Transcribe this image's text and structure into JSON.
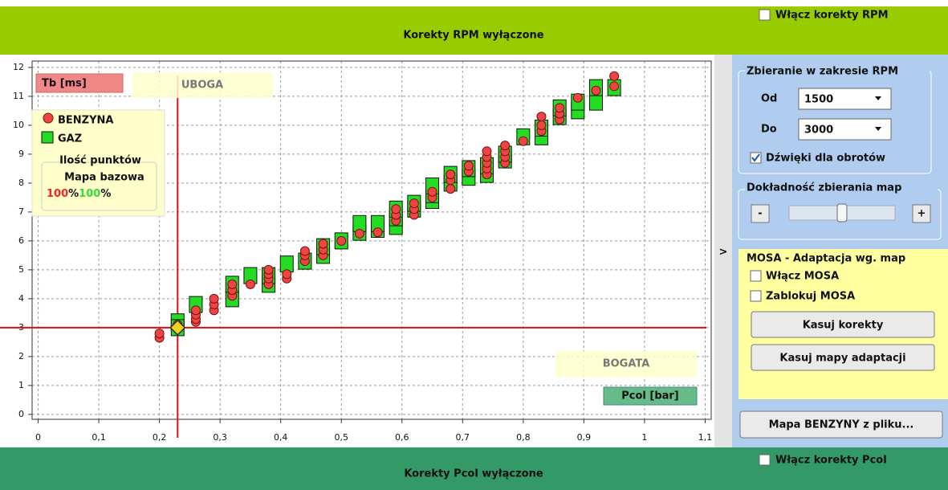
{
  "header": {
    "title": "Korekty RPM wyłączone",
    "checkbox": "Włącz korekty RPM"
  },
  "chart_data": {
    "type": "scatter",
    "y_axis_label": "Tb [ms]",
    "x_axis_label": "Pcol [bar]",
    "annotations": [
      "UBOGA",
      "BOGATA"
    ],
    "legend_title": "Ilość punktów",
    "legend_subtitle": "Mapa bazowa",
    "percent": {
      "petrol": "100",
      "gas": "100",
      "unit": "%"
    },
    "xlim": [
      -0.01,
      1.11
    ],
    "ylim": [
      -0.17,
      12.22
    ],
    "xticks": [
      0,
      {
        "value": 0.1,
        "label": "0,1"
      },
      {
        "value": 0.2,
        "label": "0,2"
      },
      {
        "value": 0.3,
        "label": "0,3"
      },
      {
        "value": 0.4,
        "label": "0,4"
      },
      {
        "value": 0.5,
        "label": "0,5"
      },
      {
        "value": 0.6,
        "label": "0,6"
      },
      {
        "value": 0.7,
        "label": "0,7"
      },
      {
        "value": 0.8,
        "label": "0,8"
      },
      {
        "value": 0.9,
        "label": "0,9"
      },
      1,
      {
        "value": 1.1,
        "label": "1,1"
      }
    ],
    "yticks": [
      0,
      1,
      2,
      3,
      4,
      5,
      6,
      7,
      8,
      9,
      10,
      11,
      12
    ],
    "grid": true,
    "cursor": {
      "x": 0.23,
      "y": 3
    },
    "series": [
      {
        "name": "GAZ",
        "color": "#22dd22",
        "marker": "square",
        "x": [
          0.23,
          0.23,
          0.26,
          0.32,
          0.32,
          0.35,
          0.38,
          0.38,
          0.41,
          0.44,
          0.47,
          0.47,
          0.5,
          0.53,
          0.53,
          0.56,
          0.56,
          0.59,
          0.59,
          0.59,
          0.62,
          0.62,
          0.65,
          0.65,
          0.65,
          0.68,
          0.68,
          0.71,
          0.71,
          0.74,
          0.74,
          0.77,
          0.77,
          0.8,
          0.83,
          0.83,
          0.86,
          0.86,
          0.89,
          0.89,
          0.92,
          0.92,
          0.95
        ],
        "values": [
          3.2,
          3.0,
          3.8,
          4.0,
          4.5,
          4.8,
          4.5,
          4.8,
          5.2,
          5.3,
          5.5,
          5.8,
          6.0,
          6.3,
          6.6,
          6.4,
          6.6,
          6.5,
          6.8,
          7.1,
          7.1,
          7.3,
          7.4,
          7.6,
          7.9,
          8.0,
          8.3,
          8.2,
          8.5,
          8.3,
          8.6,
          8.8,
          9.0,
          9.6,
          9.6,
          9.9,
          10.3,
          10.6,
          10.5,
          10.8,
          10.8,
          11.3,
          11.3
        ]
      },
      {
        "name": "BENZYNA",
        "color": "#ee4444",
        "marker": "circle",
        "x": [
          0.2,
          0.2,
          0.23,
          0.23,
          0.26,
          0.26,
          0.26,
          0.26,
          0.29,
          0.29,
          0.29,
          0.32,
          0.32,
          0.32,
          0.35,
          0.38,
          0.38,
          0.38,
          0.38,
          0.41,
          0.41,
          0.44,
          0.44,
          0.44,
          0.47,
          0.47,
          0.47,
          0.5,
          0.53,
          0.56,
          0.59,
          0.59,
          0.59,
          0.62,
          0.62,
          0.62,
          0.65,
          0.65,
          0.68,
          0.68,
          0.68,
          0.71,
          0.71,
          0.74,
          0.74,
          0.74,
          0.74,
          0.74,
          0.77,
          0.77,
          0.77,
          0.77,
          0.8,
          0.83,
          0.83,
          0.83,
          0.86,
          0.86,
          0.86,
          0.89,
          0.92,
          0.95,
          0.95
        ],
        "values": [
          2.65,
          2.8,
          2.95,
          3.1,
          3.2,
          3.3,
          3.45,
          3.6,
          3.6,
          3.8,
          4.0,
          4.1,
          4.3,
          4.5,
          4.5,
          4.5,
          4.7,
          4.85,
          5.0,
          4.7,
          4.85,
          5.3,
          5.5,
          5.65,
          5.5,
          5.7,
          5.9,
          6.0,
          6.25,
          6.3,
          6.7,
          6.9,
          7.1,
          6.9,
          7.1,
          7.3,
          7.5,
          7.7,
          7.8,
          8.1,
          8.3,
          8.4,
          8.6,
          8.3,
          8.5,
          8.7,
          8.9,
          9.1,
          8.7,
          8.9,
          9.1,
          9.3,
          9.45,
          9.8,
          10.0,
          10.3,
          10.2,
          10.4,
          10.6,
          10.95,
          11.2,
          11.35,
          11.7
        ]
      }
    ]
  },
  "panel": {
    "rpm_group": "Zbieranie w zakresie RPM",
    "from_label": "Od",
    "from_value": "1500",
    "to_label": "Do",
    "to_value": "3000",
    "sound_checkbox": "Dźwięki dla obrotów",
    "accuracy_group": "Dokładność zbierania map",
    "minus": "-",
    "plus": "+",
    "toggle": ">",
    "mosa_title": "MOSA - Adaptacja wg. map",
    "mosa_enable": "Włącz MOSA",
    "mosa_lock": "Zablokuj MOSA",
    "btn_reset": "Kasuj korekty",
    "btn_reset_maps": "Kasuj mapy adaptacji",
    "btn_load": "Mapa BENZYNY z pliku..."
  },
  "footer": {
    "title": "Korekty Pcol wyłączone",
    "checkbox": "Włącz korekty Pcol"
  }
}
